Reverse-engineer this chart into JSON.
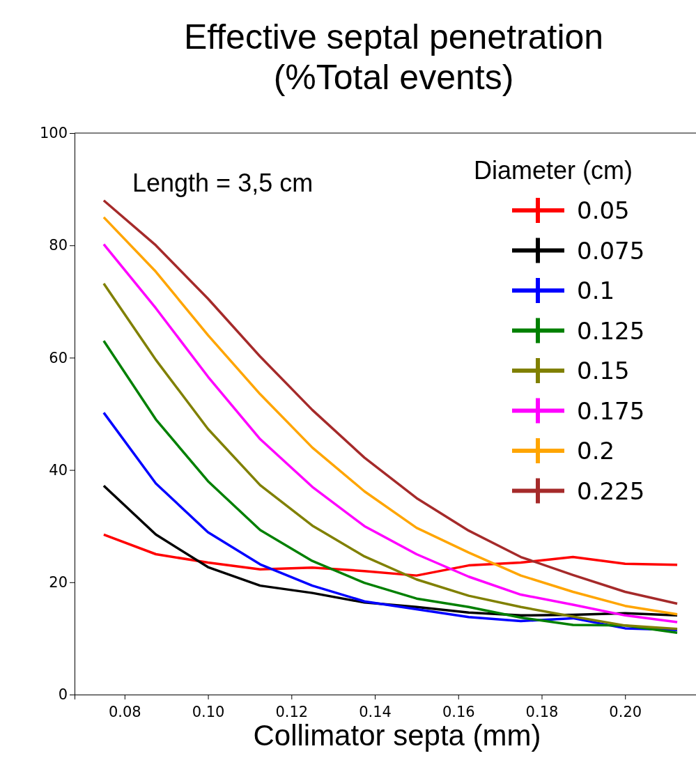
{
  "chart_data": {
    "type": "line",
    "title": "Effective septal penetration\n(%Total events)",
    "xlabel": "Collimator septa (mm)",
    "legend_title": "Diameter (cm)",
    "annotations": [
      "Length = 3,5 cm"
    ],
    "x": [
      0.075,
      0.0875,
      0.1,
      0.1125,
      0.125,
      0.1375,
      0.15,
      0.1625,
      0.175,
      0.1875,
      0.2,
      0.2125
    ],
    "xlim": [
      0.068,
      0.217
    ],
    "xticks": [
      {
        "value": 0.08,
        "label": "0.08"
      },
      {
        "value": 0.1,
        "label": "0.10"
      },
      {
        "value": 0.12,
        "label": "0.12"
      },
      {
        "value": 0.14,
        "label": "0.14"
      },
      {
        "value": 0.16,
        "label": "0.16"
      },
      {
        "value": 0.18,
        "label": "0.18"
      },
      {
        "value": 0.2,
        "label": "0.20"
      }
    ],
    "ylim": [
      0,
      100
    ],
    "yticks": [
      0,
      20,
      40,
      60,
      80,
      100
    ],
    "legend": "top right",
    "grid": false,
    "marker": "none",
    "line_style": "solid",
    "series": [
      {
        "name": "0.05",
        "color": "#ff0000",
        "values": [
          28.5,
          25,
          23.5,
          22.3,
          22.6,
          22,
          21.2,
          23,
          23.5,
          24.5,
          23.3,
          23.1
        ]
      },
      {
        "name": "0.075",
        "color": "#000000",
        "values": [
          37.2,
          28.5,
          22.7,
          19.4,
          18.1,
          16.4,
          15.6,
          14.6,
          14.1,
          14.2,
          14.5,
          14.1
        ]
      },
      {
        "name": "0.1",
        "color": "#0000ff",
        "values": [
          50.2,
          37.6,
          28.9,
          23.2,
          19.4,
          16.6,
          15.2,
          13.8,
          13.1,
          13.6,
          11.8,
          11.5
        ]
      },
      {
        "name": "0.125",
        "color": "#008000",
        "values": [
          63,
          49,
          38,
          29.3,
          23.8,
          19.9,
          17.1,
          15.6,
          13.7,
          12.4,
          12.3,
          11
        ]
      },
      {
        "name": "0.15",
        "color": "#808000",
        "values": [
          73.2,
          59.6,
          47.3,
          37.3,
          30.1,
          24.6,
          20.5,
          17.6,
          15.6,
          13.9,
          12.3,
          11.7
        ]
      },
      {
        "name": "0.175",
        "color": "#ff00ff",
        "values": [
          80.2,
          68.8,
          56.6,
          45.5,
          37,
          30,
          25,
          21,
          17.8,
          16,
          14.1,
          12.9
        ]
      },
      {
        "name": "0.2",
        "color": "#ffa500",
        "values": [
          85,
          75.3,
          64,
          53.5,
          44,
          36.2,
          29.7,
          25.3,
          21.2,
          18.3,
          15.8,
          14.3
        ]
      },
      {
        "name": "0.225",
        "color": "#a52a2a",
        "values": [
          88,
          80,
          70.5,
          60.2,
          50.7,
          42.2,
          35,
          29.2,
          24.5,
          21.3,
          18.3,
          16.2
        ]
      }
    ]
  }
}
